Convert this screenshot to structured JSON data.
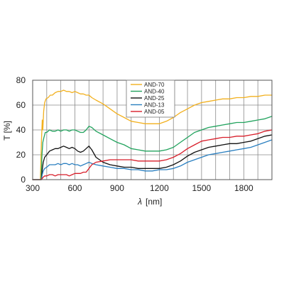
{
  "chart_data": {
    "type": "line",
    "xlabel_symbol": "λ",
    "xlabel_unit": "[nm]",
    "ylabel": "T [%]",
    "xlim": [
      300,
      2000
    ],
    "ylim": [
      0,
      80
    ],
    "x_ticks": [
      300,
      600,
      900,
      1200,
      1500,
      1800
    ],
    "y_ticks": [
      0,
      20,
      40,
      60,
      80
    ],
    "x_grid_step": 100,
    "grid": true,
    "legend_position": "top-center",
    "series": [
      {
        "name": "AND-70",
        "color": "#f2b01e",
        "points": [
          [
            300,
            0
          ],
          [
            340,
            0
          ],
          [
            355,
            0
          ],
          [
            362,
            30
          ],
          [
            368,
            48
          ],
          [
            372,
            40
          ],
          [
            378,
            55
          ],
          [
            385,
            62
          ],
          [
            395,
            65
          ],
          [
            410,
            66
          ],
          [
            425,
            68
          ],
          [
            440,
            68
          ],
          [
            460,
            70
          ],
          [
            480,
            71
          ],
          [
            500,
            71
          ],
          [
            520,
            72
          ],
          [
            540,
            71
          ],
          [
            560,
            71
          ],
          [
            580,
            70
          ],
          [
            600,
            71
          ],
          [
            620,
            70
          ],
          [
            640,
            69
          ],
          [
            660,
            69
          ],
          [
            680,
            68
          ],
          [
            700,
            68
          ],
          [
            720,
            66
          ],
          [
            750,
            64
          ],
          [
            800,
            61
          ],
          [
            850,
            57
          ],
          [
            900,
            53
          ],
          [
            950,
            50
          ],
          [
            1000,
            47
          ],
          [
            1050,
            46
          ],
          [
            1100,
            45
          ],
          [
            1150,
            45
          ],
          [
            1200,
            45
          ],
          [
            1250,
            47
          ],
          [
            1300,
            50
          ],
          [
            1350,
            54
          ],
          [
            1400,
            57
          ],
          [
            1450,
            60
          ],
          [
            1500,
            62
          ],
          [
            1550,
            63
          ],
          [
            1600,
            64
          ],
          [
            1650,
            65
          ],
          [
            1700,
            65
          ],
          [
            1750,
            66
          ],
          [
            1800,
            66
          ],
          [
            1850,
            67
          ],
          [
            1900,
            67
          ],
          [
            1950,
            68
          ],
          [
            2000,
            68
          ]
        ]
      },
      {
        "name": "AND-40",
        "color": "#22a35e",
        "points": [
          [
            300,
            0
          ],
          [
            345,
            0
          ],
          [
            360,
            0
          ],
          [
            366,
            20
          ],
          [
            372,
            30
          ],
          [
            380,
            34
          ],
          [
            390,
            38
          ],
          [
            400,
            38
          ],
          [
            420,
            40
          ],
          [
            440,
            39
          ],
          [
            460,
            39
          ],
          [
            480,
            40
          ],
          [
            500,
            39
          ],
          [
            520,
            40
          ],
          [
            540,
            40
          ],
          [
            560,
            39
          ],
          [
            580,
            40
          ],
          [
            600,
            40
          ],
          [
            620,
            39
          ],
          [
            640,
            38
          ],
          [
            660,
            38
          ],
          [
            680,
            40
          ],
          [
            700,
            43
          ],
          [
            720,
            42
          ],
          [
            750,
            39
          ],
          [
            800,
            36
          ],
          [
            850,
            33
          ],
          [
            900,
            30
          ],
          [
            950,
            28
          ],
          [
            1000,
            25
          ],
          [
            1050,
            24
          ],
          [
            1100,
            23
          ],
          [
            1150,
            23
          ],
          [
            1200,
            23
          ],
          [
            1250,
            24
          ],
          [
            1300,
            26
          ],
          [
            1350,
            30
          ],
          [
            1400,
            34
          ],
          [
            1450,
            38
          ],
          [
            1500,
            40
          ],
          [
            1550,
            42
          ],
          [
            1600,
            43
          ],
          [
            1650,
            44
          ],
          [
            1700,
            45
          ],
          [
            1750,
            46
          ],
          [
            1800,
            46
          ],
          [
            1850,
            47
          ],
          [
            1900,
            48
          ],
          [
            1950,
            49
          ],
          [
            2000,
            51
          ]
        ]
      },
      {
        "name": "AND-25",
        "color": "#111111",
        "points": [
          [
            300,
            0
          ],
          [
            345,
            0
          ],
          [
            362,
            0
          ],
          [
            368,
            8
          ],
          [
            375,
            14
          ],
          [
            385,
            18
          ],
          [
            400,
            20
          ],
          [
            420,
            23
          ],
          [
            440,
            24
          ],
          [
            460,
            25
          ],
          [
            480,
            25
          ],
          [
            500,
            26
          ],
          [
            520,
            27
          ],
          [
            540,
            26
          ],
          [
            560,
            25
          ],
          [
            580,
            26
          ],
          [
            600,
            25
          ],
          [
            620,
            23
          ],
          [
            640,
            22
          ],
          [
            660,
            23
          ],
          [
            680,
            25
          ],
          [
            700,
            27
          ],
          [
            720,
            24
          ],
          [
            750,
            18
          ],
          [
            800,
            14
          ],
          [
            850,
            12
          ],
          [
            900,
            11
          ],
          [
            950,
            10
          ],
          [
            1000,
            10
          ],
          [
            1050,
            9
          ],
          [
            1100,
            9
          ],
          [
            1150,
            9
          ],
          [
            1200,
            9
          ],
          [
            1250,
            10
          ],
          [
            1300,
            12
          ],
          [
            1350,
            15
          ],
          [
            1400,
            19
          ],
          [
            1450,
            22
          ],
          [
            1500,
            24
          ],
          [
            1550,
            26
          ],
          [
            1600,
            27
          ],
          [
            1650,
            28
          ],
          [
            1700,
            29
          ],
          [
            1750,
            29
          ],
          [
            1800,
            30
          ],
          [
            1850,
            31
          ],
          [
            1900,
            33
          ],
          [
            1950,
            35
          ],
          [
            2000,
            36
          ]
        ]
      },
      {
        "name": "AND-13",
        "color": "#2a7fc0",
        "points": [
          [
            300,
            0
          ],
          [
            345,
            0
          ],
          [
            362,
            0
          ],
          [
            368,
            4
          ],
          [
            375,
            7
          ],
          [
            385,
            9
          ],
          [
            400,
            10
          ],
          [
            420,
            12
          ],
          [
            440,
            12
          ],
          [
            460,
            12
          ],
          [
            480,
            13
          ],
          [
            500,
            12
          ],
          [
            520,
            13
          ],
          [
            540,
            13
          ],
          [
            560,
            12
          ],
          [
            580,
            13
          ],
          [
            600,
            12
          ],
          [
            620,
            12
          ],
          [
            640,
            11
          ],
          [
            660,
            12
          ],
          [
            680,
            13
          ],
          [
            700,
            14
          ],
          [
            720,
            13
          ],
          [
            750,
            12
          ],
          [
            800,
            11
          ],
          [
            850,
            10
          ],
          [
            900,
            9
          ],
          [
            950,
            9
          ],
          [
            1000,
            8
          ],
          [
            1050,
            8
          ],
          [
            1100,
            7
          ],
          [
            1150,
            7
          ],
          [
            1200,
            8
          ],
          [
            1250,
            8
          ],
          [
            1300,
            9
          ],
          [
            1350,
            11
          ],
          [
            1400,
            14
          ],
          [
            1450,
            16
          ],
          [
            1500,
            18
          ],
          [
            1550,
            20
          ],
          [
            1600,
            21
          ],
          [
            1650,
            22
          ],
          [
            1700,
            23
          ],
          [
            1750,
            24
          ],
          [
            1800,
            25
          ],
          [
            1850,
            26
          ],
          [
            1900,
            28
          ],
          [
            1950,
            30
          ],
          [
            2000,
            32
          ]
        ]
      },
      {
        "name": "AND-05",
        "color": "#d81e2a",
        "points": [
          [
            300,
            0
          ],
          [
            345,
            0
          ],
          [
            362,
            0
          ],
          [
            368,
            1
          ],
          [
            375,
            2
          ],
          [
            385,
            3
          ],
          [
            400,
            3
          ],
          [
            420,
            4
          ],
          [
            440,
            4
          ],
          [
            460,
            3
          ],
          [
            480,
            4
          ],
          [
            500,
            4
          ],
          [
            520,
            4
          ],
          [
            540,
            4
          ],
          [
            560,
            3
          ],
          [
            580,
            4
          ],
          [
            600,
            5
          ],
          [
            620,
            5
          ],
          [
            640,
            5
          ],
          [
            660,
            6
          ],
          [
            680,
            6
          ],
          [
            700,
            9
          ],
          [
            720,
            12
          ],
          [
            750,
            14
          ],
          [
            800,
            15
          ],
          [
            850,
            16
          ],
          [
            900,
            16
          ],
          [
            950,
            16
          ],
          [
            1000,
            16
          ],
          [
            1050,
            15
          ],
          [
            1100,
            15
          ],
          [
            1150,
            15
          ],
          [
            1200,
            15
          ],
          [
            1250,
            16
          ],
          [
            1300,
            18
          ],
          [
            1350,
            21
          ],
          [
            1400,
            25
          ],
          [
            1450,
            28
          ],
          [
            1500,
            31
          ],
          [
            1550,
            32
          ],
          [
            1600,
            33
          ],
          [
            1650,
            34
          ],
          [
            1700,
            34
          ],
          [
            1750,
            35
          ],
          [
            1800,
            35
          ],
          [
            1850,
            36
          ],
          [
            1900,
            37
          ],
          [
            1950,
            39
          ],
          [
            2000,
            40
          ]
        ]
      }
    ]
  }
}
